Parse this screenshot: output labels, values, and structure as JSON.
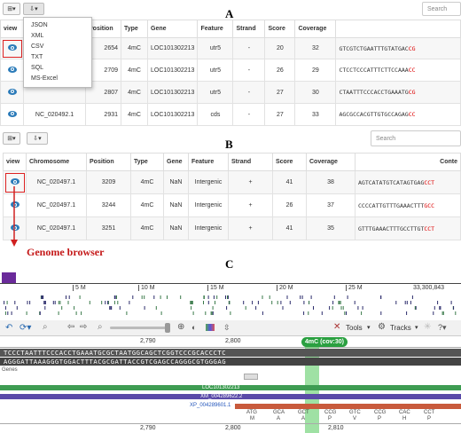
{
  "panels": {
    "a": "A",
    "b": "B",
    "c": "C"
  },
  "panel_a": {
    "search": "Search",
    "export_menu": [
      "JSON",
      "XML",
      "CSV",
      "TXT",
      "SQL",
      "MS-Excel"
    ],
    "headers": [
      "view",
      "",
      "Position",
      "Type",
      "Gene",
      "Feature",
      "Strand",
      "Score",
      "Coverage",
      ""
    ],
    "rows": [
      {
        "chrom": "",
        "pos": "2654",
        "type": "4mC",
        "gene": "LOC101302213",
        "feature": "utr5",
        "strand": "-",
        "score": "20",
        "coverage": "32",
        "seq": "GTCGTCTGAATTTGTATGAC",
        "seq_red": "CG"
      },
      {
        "chrom": "",
        "pos": "2709",
        "type": "4mC",
        "gene": "LOC101302213",
        "feature": "utr5",
        "strand": "-",
        "score": "26",
        "coverage": "29",
        "seq": "CTCCTCCCATTTCTTCCAAA",
        "seq_red": "CC"
      },
      {
        "chrom": "",
        "pos": "2807",
        "type": "4mC",
        "gene": "LOC101302213",
        "feature": "utr5",
        "strand": "-",
        "score": "27",
        "coverage": "30",
        "seq": "CTAATTTCCCACCTGAAATG",
        "seq_red": "CG"
      },
      {
        "chrom": "NC_020492.1",
        "pos": "2931",
        "type": "4mC",
        "gene": "LOC101302213",
        "feature": "cds",
        "strand": "-",
        "score": "27",
        "coverage": "33",
        "seq": "AGCGCCACGTTGTGCCAGAG",
        "seq_red": "CC"
      }
    ]
  },
  "panel_b": {
    "search": "Search",
    "headers": [
      "view",
      "Chromosome",
      "Position",
      "Type",
      "Gene",
      "Feature",
      "Strand",
      "Score",
      "Coverage",
      "Conte"
    ],
    "rows": [
      {
        "chrom": "NC_020497.1",
        "pos": "3209",
        "type": "4mC",
        "gene": "NaN",
        "feature": "Intergenic",
        "strand": "+",
        "score": "41",
        "coverage": "38",
        "seq": "AGTCATATGTCATAGTGAG",
        "seq_red": "CCT"
      },
      {
        "chrom": "NC_020497.1",
        "pos": "3244",
        "type": "4mC",
        "gene": "NaN",
        "feature": "Intergenic",
        "strand": "+",
        "score": "26",
        "coverage": "37",
        "seq": "CCCCATTGTTTGAAACTTT",
        "seq_red": "GCC"
      },
      {
        "chrom": "NC_020497.1",
        "pos": "3251",
        "type": "4mC",
        "gene": "NaN",
        "feature": "Intergenic",
        "strand": "+",
        "score": "41",
        "coverage": "35",
        "seq": "GTTTGAAACTTTGCCTTGT",
        "seq_red": "CCT"
      }
    ]
  },
  "callout": "Genome browser",
  "panel_c": {
    "overview_ticks": [
      "5 M",
      "10 M",
      "15 M",
      "20 M",
      "25 M",
      "33,300,843"
    ],
    "tools_label": "Tools",
    "tracks_label": "Tracks",
    "coord_ticks": [
      "2,790",
      "2,800",
      "2,810"
    ],
    "highlight_label": "4mC (cov:30)",
    "seq_forward": "TCCCTAATTTCCCACCTGAAATGCGCTAATGGCAGCTCGGTCCCGCACCCTC",
    "seq_reverse": "AGGGATTAAAGGGTGGACTTTACGCGATTACCGTCGAGCCAGGGCGTGGGAG",
    "gene_track_label": "Genes",
    "features": [
      "LOC101302213",
      "XM_004289622.2",
      "XP_004289601.1"
    ],
    "aa_codons": [
      "ATG",
      "GCA",
      "GCT",
      "CCG",
      "GTC",
      "CCG",
      "CAC",
      "CCT"
    ],
    "aa_letters": [
      "M",
      "A",
      "A",
      "P",
      "V",
      "P",
      "H",
      "P"
    ]
  }
}
